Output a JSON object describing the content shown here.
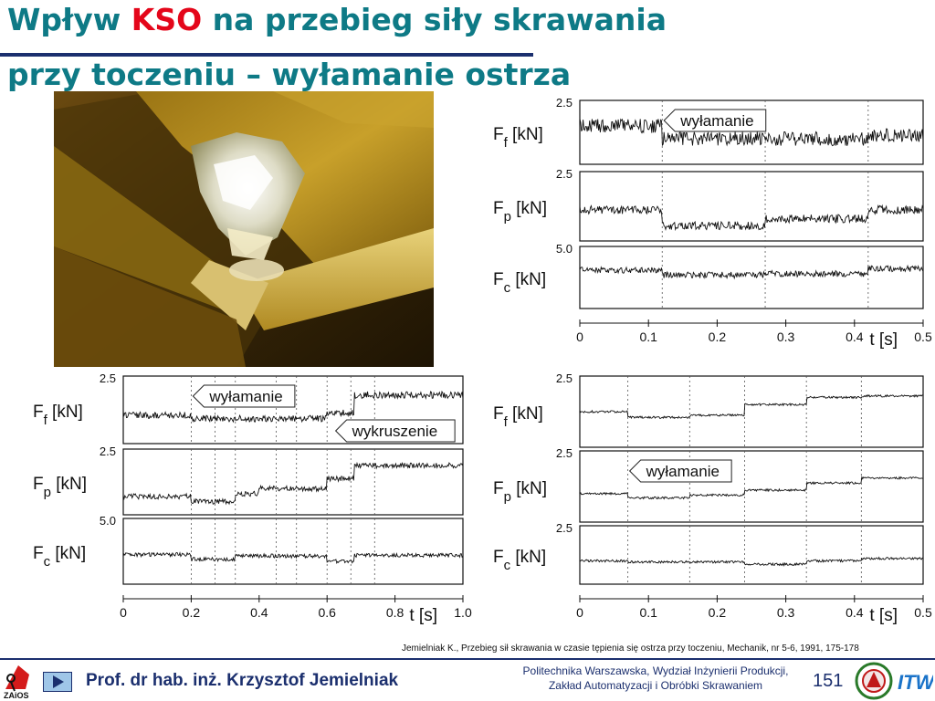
{
  "header": {
    "title_pre": "Wpływ ",
    "title_accent": "KSO",
    "title_post": " na przebieg siły skrawania",
    "subtitle": "przy toczeniu – wyłamanie ostrza",
    "accent_color": "#e4061a",
    "title_color": "#0e7a86"
  },
  "chart_data": [
    {
      "type": "line",
      "panels": [
        {
          "label_main": "F",
          "label_sub": "f",
          "label_unit": " [kN]",
          "ytick": "2.5"
        },
        {
          "label_main": "F",
          "label_sub": "p",
          "label_unit": " [kN]",
          "ytick": "2.5"
        },
        {
          "label_main": "F",
          "label_sub": "c",
          "label_unit": " [kN]",
          "ytick": "5.0"
        }
      ],
      "xticks": [
        "0",
        "0.1",
        "0.2",
        "0.3",
        "0.4",
        "0.5"
      ],
      "xlabel": "t [s]",
      "xlim": [
        0,
        0.5
      ],
      "event_times": [
        0.12,
        0.27,
        0.42
      ],
      "annotations": [
        {
          "text": "wyłamanie",
          "panel": 0,
          "t": 0.12
        }
      ],
      "series": [
        {
          "panel": 0,
          "base": 0.42,
          "noise": 0.11,
          "steps": [
            [
              0,
              0.4
            ],
            [
              0.12,
              0.6
            ],
            [
              0.42,
              0.55
            ]
          ]
        },
        {
          "panel": 1,
          "base": 0.55,
          "noise": 0.06,
          "steps": [
            [
              0,
              0.55
            ],
            [
              0.12,
              0.78
            ],
            [
              0.27,
              0.68
            ],
            [
              0.42,
              0.55
            ]
          ]
        },
        {
          "panel": 2,
          "base": 0.4,
          "noise": 0.05,
          "steps": [
            [
              0,
              0.38
            ],
            [
              0.12,
              0.46
            ],
            [
              0.27,
              0.44
            ],
            [
              0.42,
              0.36
            ]
          ]
        }
      ]
    },
    {
      "type": "line",
      "panels": [
        {
          "label_main": "F",
          "label_sub": "f",
          "label_unit": " [kN]",
          "ytick": "2.5"
        },
        {
          "label_main": "F",
          "label_sub": "p",
          "label_unit": " [kN]",
          "ytick": "2.5"
        },
        {
          "label_main": "F",
          "label_sub": "c",
          "label_unit": " [kN]",
          "ytick": "5.0"
        }
      ],
      "xticks": [
        "0",
        "0.2",
        "0.4",
        "0.6",
        "0.8",
        "1.0"
      ],
      "xlabel": "t [s]",
      "xlim": [
        0,
        1.0
      ],
      "event_times": [
        0.2,
        0.27,
        0.33,
        0.45,
        0.51,
        0.6,
        0.67,
        0.74
      ],
      "annotations": [
        {
          "text": "wyłamanie",
          "panel": 0,
          "t": 0.2
        },
        {
          "text": "wykruszenie",
          "panel": 0,
          "t": 0.62
        }
      ],
      "series": [
        {
          "panel": 0,
          "base": 0.6,
          "noise": 0.05,
          "steps": [
            [
              0,
              0.58
            ],
            [
              0.2,
              0.63
            ],
            [
              0.6,
              0.55
            ],
            [
              0.68,
              0.28
            ]
          ]
        },
        {
          "panel": 1,
          "base": 0.75,
          "noise": 0.04,
          "steps": [
            [
              0,
              0.72
            ],
            [
              0.2,
              0.8
            ],
            [
              0.33,
              0.68
            ],
            [
              0.4,
              0.6
            ],
            [
              0.6,
              0.45
            ],
            [
              0.68,
              0.25
            ]
          ]
        },
        {
          "panel": 2,
          "base": 0.55,
          "noise": 0.03,
          "steps": [
            [
              0,
              0.55
            ],
            [
              0.2,
              0.62
            ],
            [
              0.33,
              0.57
            ],
            [
              0.6,
              0.65
            ],
            [
              0.68,
              0.56
            ]
          ]
        }
      ]
    },
    {
      "type": "line",
      "panels": [
        {
          "label_main": "F",
          "label_sub": "f",
          "label_unit": " [kN]",
          "ytick": "2.5"
        },
        {
          "label_main": "F",
          "label_sub": "p",
          "label_unit": " [kN]",
          "ytick": "2.5"
        },
        {
          "label_main": "F",
          "label_sub": "c",
          "label_unit": " [kN]",
          "ytick": "2.5"
        }
      ],
      "xticks": [
        "0",
        "0.1",
        "0.2",
        "0.3",
        "0.4",
        "0.5"
      ],
      "xlabel": "t [s]",
      "xlim": [
        0,
        0.5
      ],
      "event_times": [
        0.07,
        0.16,
        0.24,
        0.33,
        0.41
      ],
      "annotations": [
        {
          "text": "wyłamanie",
          "panel": 1,
          "t": 0.07
        }
      ],
      "series": [
        {
          "panel": 0,
          "base": 0.5,
          "noise": 0.015,
          "steps": [
            [
              0,
              0.5
            ],
            [
              0.07,
              0.58
            ],
            [
              0.16,
              0.55
            ],
            [
              0.24,
              0.4
            ],
            [
              0.33,
              0.3
            ],
            [
              0.41,
              0.28
            ]
          ]
        },
        {
          "panel": 1,
          "base": 0.6,
          "noise": 0.015,
          "steps": [
            [
              0,
              0.6
            ],
            [
              0.07,
              0.66
            ],
            [
              0.16,
              0.62
            ],
            [
              0.24,
              0.55
            ],
            [
              0.33,
              0.45
            ],
            [
              0.41,
              0.38
            ]
          ]
        },
        {
          "panel": 2,
          "base": 0.6,
          "noise": 0.02,
          "steps": [
            [
              0,
              0.6
            ],
            [
              0.07,
              0.62
            ],
            [
              0.24,
              0.66
            ],
            [
              0.33,
              0.6
            ],
            [
              0.41,
              0.56
            ]
          ]
        }
      ]
    }
  ],
  "citation": "Jemielniak K., Przebieg sił skrawania w czasie tępienia się ostrza przy toczeniu, Mechanik, nr 5-6, 1991, 175-178",
  "footer": {
    "author": "Prof. dr hab. inż. Krzysztof Jemielniak",
    "institution_line1": "Politechnika Warszawska, Wydział Inżynierii Produkcji,",
    "institution_line2": "Zakład Automatyzacji i Obróbki Skrawaniem",
    "page_number": "151",
    "logo_left_text": "ZAiOS",
    "logo_right_text": "ITW",
    "nav_icon": "play-arrow-icon"
  }
}
